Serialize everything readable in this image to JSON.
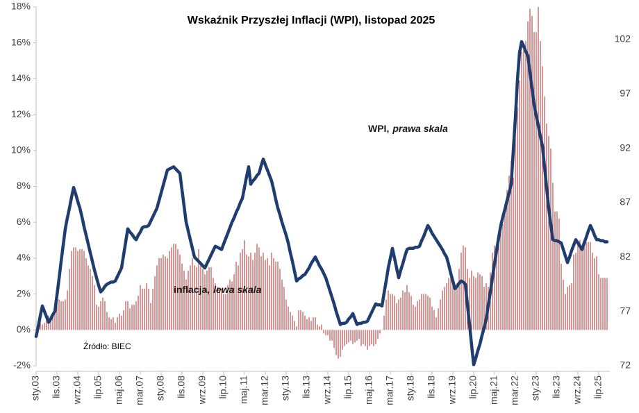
{
  "chart_data": {
    "type": "combo",
    "title": "Wskaźnik Przyszłej Inflacji (WPI), listopad 2025",
    "source": "Źródło: BIEC",
    "categories": [
      "sty.03",
      null,
      null,
      null,
      null,
      null,
      null,
      null,
      null,
      null,
      "lis.03",
      null,
      null,
      null,
      null,
      null,
      null,
      null,
      null,
      null,
      "wrz.04",
      null,
      null,
      null,
      null,
      null,
      null,
      null,
      null,
      null,
      "lip.05",
      null,
      null,
      null,
      null,
      null,
      null,
      null,
      null,
      null,
      "maj.06",
      null,
      null,
      null,
      null,
      null,
      null,
      null,
      null,
      null,
      "mar.07",
      null,
      null,
      null,
      null,
      null,
      null,
      null,
      null,
      null,
      "sty.08",
      null,
      null,
      null,
      null,
      null,
      null,
      null,
      null,
      null,
      "lis.08",
      null,
      null,
      null,
      null,
      null,
      null,
      null,
      null,
      null,
      "wrz.09",
      null,
      null,
      null,
      null,
      null,
      null,
      null,
      null,
      null,
      "lip.10",
      null,
      null,
      null,
      null,
      null,
      null,
      null,
      null,
      null,
      "maj.11",
      null,
      null,
      null,
      null,
      null,
      null,
      null,
      null,
      null,
      "mar.12",
      null,
      null,
      null,
      null,
      null,
      null,
      null,
      null,
      null,
      "sty.13",
      null,
      null,
      null,
      null,
      null,
      null,
      null,
      null,
      null,
      "lis.13",
      null,
      null,
      null,
      null,
      null,
      null,
      null,
      null,
      null,
      "wrz.14",
      null,
      null,
      null,
      null,
      null,
      null,
      null,
      null,
      null,
      "lip.15",
      null,
      null,
      null,
      null,
      null,
      null,
      null,
      null,
      null,
      "maj.16",
      null,
      null,
      null,
      null,
      null,
      null,
      null,
      null,
      null,
      "mar.17",
      null,
      null,
      null,
      null,
      null,
      null,
      null,
      null,
      null,
      "sty.18",
      null,
      null,
      null,
      null,
      null,
      null,
      null,
      null,
      null,
      "lis.18",
      null,
      null,
      null,
      null,
      null,
      null,
      null,
      null,
      null,
      "wrz.19",
      null,
      null,
      null,
      null,
      null,
      null,
      null,
      null,
      null,
      "lip.20",
      null,
      null,
      null,
      null,
      null,
      null,
      null,
      null,
      null,
      "maj.21",
      null,
      null,
      null,
      null,
      null,
      null,
      null,
      null,
      null,
      "mar.22",
      null,
      null,
      null,
      null,
      null,
      null,
      null,
      null,
      null,
      "sty.23",
      null,
      null,
      null,
      null,
      null,
      null,
      null,
      null,
      null,
      "lis.23",
      null,
      null,
      null,
      null,
      null,
      null,
      null,
      null,
      null,
      "wrz.24",
      null,
      null,
      null,
      null,
      null,
      null,
      null,
      null,
      null,
      "lip.25",
      null,
      null,
      null,
      null
    ],
    "series": [
      {
        "name": "inflacja,",
        "scale_note": "lewa skala",
        "type": "bar",
        "axis": "y",
        "color": "#c0504d",
        "values": [
          0.5,
          0.5,
          0.6,
          0.3,
          0.4,
          0.8,
          0.8,
          0.7,
          0.9,
          1.3,
          1.6,
          1.7,
          1.6,
          1.6,
          1.7,
          2.2,
          3.4,
          4.4,
          4.6,
          4.6,
          4.4,
          4.5,
          4.5,
          4.4,
          4.0,
          3.6,
          3.4,
          3.0,
          2.5,
          1.4,
          1.3,
          1.6,
          1.8,
          1.6,
          1.0,
          0.7,
          0.6,
          0.7,
          0.4,
          0.7,
          0.9,
          0.8,
          1.1,
          1.6,
          1.6,
          1.2,
          1.4,
          1.4,
          1.6,
          1.9,
          2.5,
          2.3,
          2.3,
          2.6,
          2.3,
          1.5,
          2.3,
          3.0,
          3.6,
          4.0,
          4.0,
          4.2,
          4.1,
          4.0,
          4.4,
          4.6,
          4.8,
          4.8,
          4.5,
          4.2,
          3.7,
          3.3,
          2.8,
          3.3,
          3.6,
          4.0,
          3.6,
          3.5,
          4.5,
          3.7,
          3.4,
          3.1,
          3.3,
          3.5,
          3.5,
          2.9,
          2.6,
          2.4,
          2.2,
          2.3,
          2.0,
          2.0,
          2.5,
          2.8,
          2.7,
          3.1,
          3.8,
          3.6,
          4.3,
          4.5,
          5.0,
          4.2,
          4.1,
          4.3,
          3.9,
          4.3,
          4.8,
          4.6,
          4.1,
          4.3,
          3.9,
          4.0,
          3.6,
          4.3,
          4.0,
          3.8,
          3.8,
          3.4,
          2.8,
          2.4,
          1.7,
          1.3,
          1.0,
          0.8,
          0.5,
          0.2,
          1.1,
          1.1,
          1.0,
          0.8,
          0.6,
          0.7,
          0.5,
          0.7,
          0.7,
          0.3,
          0.2,
          0.3,
          -0.2,
          -0.3,
          -0.3,
          -0.6,
          -0.6,
          -1.0,
          -1.4,
          -1.6,
          -1.5,
          -1.1,
          -0.9,
          -0.8,
          -0.7,
          -0.6,
          -0.8,
          -0.7,
          -0.6,
          -0.5,
          -0.9,
          -0.8,
          -0.9,
          -1.1,
          -0.9,
          -0.8,
          -0.9,
          -0.8,
          -0.5,
          -0.2,
          0.0,
          0.8,
          1.7,
          2.2,
          2.0,
          2.0,
          1.9,
          1.5,
          1.7,
          1.8,
          2.2,
          2.1,
          2.5,
          2.1,
          1.9,
          1.4,
          1.3,
          1.6,
          1.7,
          2.0,
          2.0,
          2.0,
          1.9,
          1.8,
          1.3,
          1.1,
          0.7,
          1.2,
          1.7,
          2.2,
          2.4,
          2.6,
          2.9,
          2.9,
          2.6,
          2.5,
          2.6,
          3.4,
          4.3,
          4.7,
          4.6,
          3.4,
          2.9,
          3.3,
          3.0,
          2.9,
          3.2,
          3.1,
          3.0,
          2.4,
          2.6,
          2.4,
          3.2,
          4.3,
          4.7,
          4.4,
          5.0,
          5.5,
          5.9,
          6.8,
          7.8,
          8.6,
          9.4,
          8.5,
          11.0,
          12.4,
          13.9,
          15.5,
          15.6,
          16.1,
          17.2,
          17.9,
          17.5,
          16.6,
          16.6,
          18.0,
          16.1,
          14.7,
          13.0,
          11.5,
          10.8,
          10.1,
          8.2,
          6.6,
          6.6,
          6.2,
          3.7,
          2.8,
          2.0,
          2.4,
          2.5,
          2.6,
          4.2,
          4.3,
          4.9,
          5.0,
          4.7,
          4.7,
          4.9,
          4.9,
          4.9,
          4.3,
          4.0,
          4.1,
          3.1,
          2.9,
          2.9,
          2.9,
          2.9
        ]
      },
      {
        "name": "WPI,",
        "scale_note": "prawa skala",
        "type": "line",
        "axis": "y2",
        "color": "#1f3d6e",
        "values": [
          74.7,
          75.6,
          76.6,
          77.5,
          77,
          76.5,
          76,
          76.3,
          76.7,
          77,
          78.5,
          80,
          81.6,
          83.1,
          84.6,
          85.6,
          86.5,
          87.5,
          88.4,
          87.8,
          87.1,
          86.5,
          85.7,
          84.8,
          84,
          83.2,
          82.4,
          81.6,
          80.8,
          80.1,
          79.4,
          78.8,
          79,
          79.3,
          79.5,
          79.6,
          79.7,
          79.7,
          79.8,
          80.2,
          80.6,
          81,
          82.2,
          83.4,
          84.6,
          84.3,
          84.1,
          83.8,
          83.6,
          84,
          84.3,
          84.7,
          84.8,
          84.8,
          84.9,
          85.3,
          85.7,
          86.1,
          86.5,
          87.2,
          87.9,
          88.6,
          89.3,
          90,
          90.1,
          90.2,
          90.3,
          90.1,
          89.9,
          89.7,
          88.2,
          86.7,
          85.2,
          84.4,
          83.6,
          82.8,
          82,
          81.8,
          81.6,
          81.4,
          81.2,
          81,
          81.4,
          81.8,
          82.2,
          82.6,
          83,
          82.9,
          82.8,
          82.7,
          83.2,
          83.7,
          84.2,
          84.7,
          85.2,
          85.6,
          86.1,
          86.5,
          87,
          87.4,
          88.4,
          89.4,
          90.3,
          88.7,
          89,
          89.2,
          89.5,
          89.7,
          90.4,
          91,
          90.5,
          90,
          89.5,
          89,
          88.2,
          87.3,
          86.5,
          85.9,
          85.2,
          84.6,
          84,
          83.3,
          82.4,
          81.6,
          80.7,
          79.8,
          80,
          80.1,
          80.3,
          80.4,
          80.7,
          81,
          81.4,
          81.7,
          82,
          81.6,
          81.2,
          80.9,
          80.5,
          80.1,
          79.5,
          78.9,
          78.3,
          77.7,
          77,
          76.4,
          75.8,
          75.9,
          75.9,
          76,
          76.3,
          76.5,
          76.8,
          76.3,
          75.8,
          75.9,
          75.9,
          76,
          76,
          76.1,
          76.5,
          76.9,
          77.3,
          77.7,
          77.6,
          77.6,
          77.5,
          78.7,
          79.8,
          81,
          81.9,
          82.8,
          81.9,
          81,
          80.1,
          80.8,
          81.4,
          82.1,
          82.7,
          82.8,
          82.8,
          82.8,
          82.9,
          82.9,
          83,
          83.5,
          83.9,
          84.4,
          84.9,
          84.6,
          84.2,
          83.9,
          83.6,
          83.3,
          83,
          82.7,
          82.3,
          82,
          81.3,
          80.5,
          79.8,
          79.1,
          79.3,
          79.6,
          79.8,
          79.7,
          79.5,
          77.6,
          75.8,
          73.9,
          72.1,
          72.7,
          73.4,
          74,
          74.8,
          75.5,
          76.3,
          77.6,
          78.8,
          80.1,
          81.4,
          82.6,
          83.8,
          84.9,
          85.7,
          86.4,
          87.2,
          87.9,
          88.7,
          91.8,
          94.8,
          98.3,
          100.8,
          101.8,
          101.4,
          100.9,
          100.5,
          99,
          97.5,
          96,
          95,
          94.1,
          93.1,
          92.2,
          90.3,
          88.4,
          86.5,
          85,
          83.6,
          83.5,
          83.5,
          83.4,
          83.3,
          82.7,
          82.1,
          81.5,
          82,
          82.6,
          83.1,
          83.6,
          83.3,
          83,
          82.7,
          83.3,
          83.8,
          84.4,
          84.9,
          84.5,
          84,
          83.6,
          83.6,
          83.5,
          83.5,
          83.4,
          83.4
        ]
      }
    ],
    "ylim": [
      -2,
      18
    ],
    "yticks": [
      {
        "value": -2,
        "label": "-2%"
      },
      {
        "value": 0,
        "label": "0%"
      },
      {
        "value": 2,
        "label": "2%"
      },
      {
        "value": 4,
        "label": "4%"
      },
      {
        "value": 6,
        "label": "6%"
      },
      {
        "value": 8,
        "label": "8%"
      },
      {
        "value": 10,
        "label": "10%"
      },
      {
        "value": 12,
        "label": "12%"
      },
      {
        "value": 14,
        "label": "14%"
      },
      {
        "value": 16,
        "label": "16%"
      },
      {
        "value": 18,
        "label": "18%"
      }
    ],
    "y2lim": [
      72,
      105
    ],
    "y2ticks": [
      72,
      77,
      82,
      87,
      92,
      97,
      102
    ],
    "grid": false
  }
}
